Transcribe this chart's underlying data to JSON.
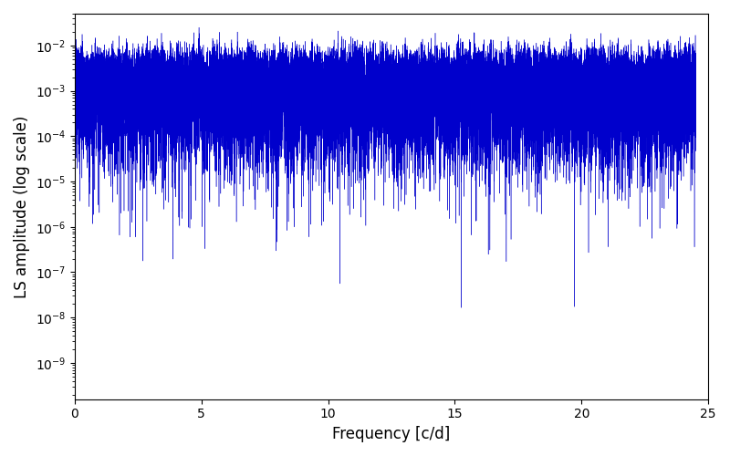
{
  "xlabel": "Frequency [c/d]",
  "ylabel": "LS amplitude (log scale)",
  "xlim": [
    0,
    25
  ],
  "ylim_log": [
    -9.8,
    -1.3
  ],
  "line_color": "#0000cc",
  "background_color": "#ffffff",
  "figsize": [
    8.0,
    5.0
  ],
  "dpi": 100,
  "n_points": 50000,
  "freq_max": 24.5,
  "noise_floor": 1.5e-06,
  "peak_amplitude": 0.022,
  "alpha": 2.5,
  "transition_freq": 6.0,
  "seed": 42
}
